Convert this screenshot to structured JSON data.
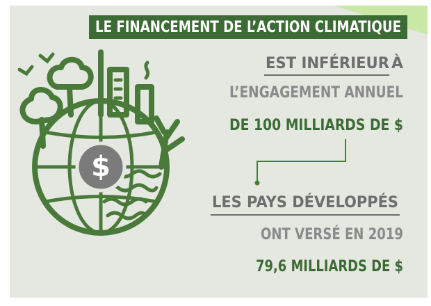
{
  "title": "LE FINANCEMENT DE L’ACTION CLIMATIQUE",
  "statement": {
    "emphasis": "EST INFÉRIEUR",
    "suffix": "À",
    "line2": "L’ENGAGEMENT ANNUEL",
    "highlight": "DE 100 MILLIARDS DE $"
  },
  "fact": {
    "emphasis": "LES PAYS DÉVELOPPÉS",
    "line2": "ONT VERSÉ EN 2019",
    "highlight": "79,6 MILLIARDS DE $"
  },
  "icon": "$"
}
